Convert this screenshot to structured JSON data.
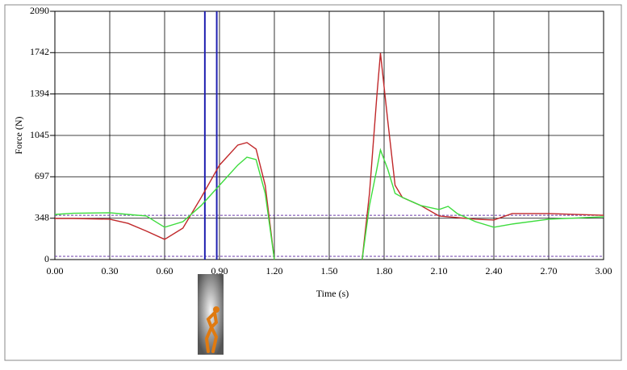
{
  "chart_data": {
    "type": "line",
    "x_label": "Time (s)",
    "y_label": "Force (N)",
    "xlim": [
      0,
      3
    ],
    "ylim": [
      0,
      2090
    ],
    "xticks": [
      {
        "value": 0,
        "label": "0.00"
      },
      {
        "value": 0.3,
        "label": "0.30"
      },
      {
        "value": 0.6,
        "label": "0.60"
      },
      {
        "value": 0.9,
        "label": "0.90"
      },
      {
        "value": 1.2,
        "label": "1.20"
      },
      {
        "value": 1.5,
        "label": "1.50"
      },
      {
        "value": 1.8,
        "label": "1.80"
      },
      {
        "value": 2.1,
        "label": "2.10"
      },
      {
        "value": 2.4,
        "label": "2.40"
      },
      {
        "value": 2.7,
        "label": "2.70"
      },
      {
        "value": 3,
        "label": "3.00"
      }
    ],
    "yticks": [
      0,
      348,
      697,
      1045,
      1394,
      1742,
      2090
    ],
    "grid": true,
    "x": [
      0,
      0.1,
      0.3,
      0.4,
      0.5,
      0.6,
      0.7,
      0.8,
      0.9,
      1.0,
      1.05,
      1.1,
      1.15,
      1.2,
      1.44,
      1.68,
      1.72,
      1.76,
      1.78,
      1.82,
      1.86,
      1.9,
      2.0,
      2.1,
      2.15,
      2.2,
      2.3,
      2.4,
      2.5,
      2.7,
      3.0
    ],
    "series": [
      {
        "color": "#c0282a",
        "values": [
          346,
          346,
          340,
          305,
          240,
          170,
          265,
          523,
          795,
          964,
          985,
          930,
          625,
          0,
          null,
          0,
          557,
          1372,
          1738,
          1168,
          625,
          523,
          455,
          367,
          360,
          353,
          340,
          333,
          387,
          387,
          373
        ]
      },
      {
        "color": "#3ddc3d",
        "values": [
          380,
          390,
          394,
          380,
          367,
          272,
          319,
          455,
          625,
          795,
          862,
          842,
          557,
          0,
          null,
          0,
          455,
          760,
          923,
          760,
          557,
          523,
          455,
          421,
          448,
          387,
          319,
          272,
          299,
          340,
          360
        ]
      }
    ],
    "vlines": {
      "color": "#2020b0",
      "values": [
        0.82,
        0.885
      ]
    },
    "hlines": {
      "color": "#6a3aa8",
      "values": [
        372,
        27
      ]
    }
  }
}
